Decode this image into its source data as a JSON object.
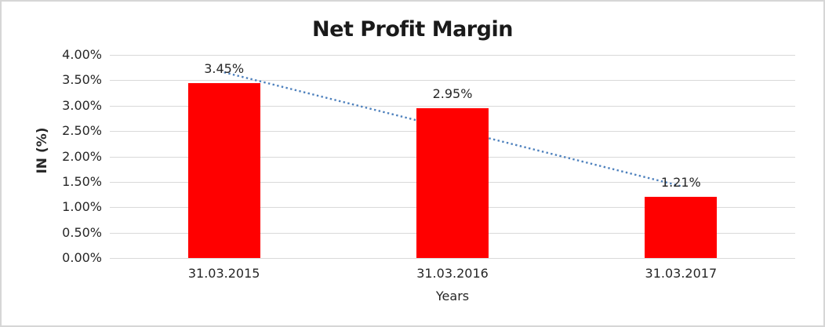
{
  "chart_data": {
    "type": "bar",
    "title": "Net Profit Margin",
    "xlabel": "Years",
    "ylabel": "IN (%)",
    "categories": [
      "31.03.2015",
      "31.03.2016",
      "31.03.2017"
    ],
    "values": [
      3.45,
      2.95,
      1.21
    ],
    "data_labels": [
      "3.45%",
      "2.95%",
      "1.21%"
    ],
    "ylim": [
      0,
      4
    ],
    "ytick_labels": [
      "0.00%",
      "0.50%",
      "1.00%",
      "1.50%",
      "2.00%",
      "2.50%",
      "3.00%",
      "3.50%",
      "4.00%"
    ],
    "grid": true,
    "legend": "none",
    "bar_color": "#ff0000",
    "gridline_color": "#d9d9d9",
    "text_color": "#262626",
    "trendline": {
      "type": "linear",
      "style": "dotted",
      "color": "#4e81bd"
    }
  }
}
